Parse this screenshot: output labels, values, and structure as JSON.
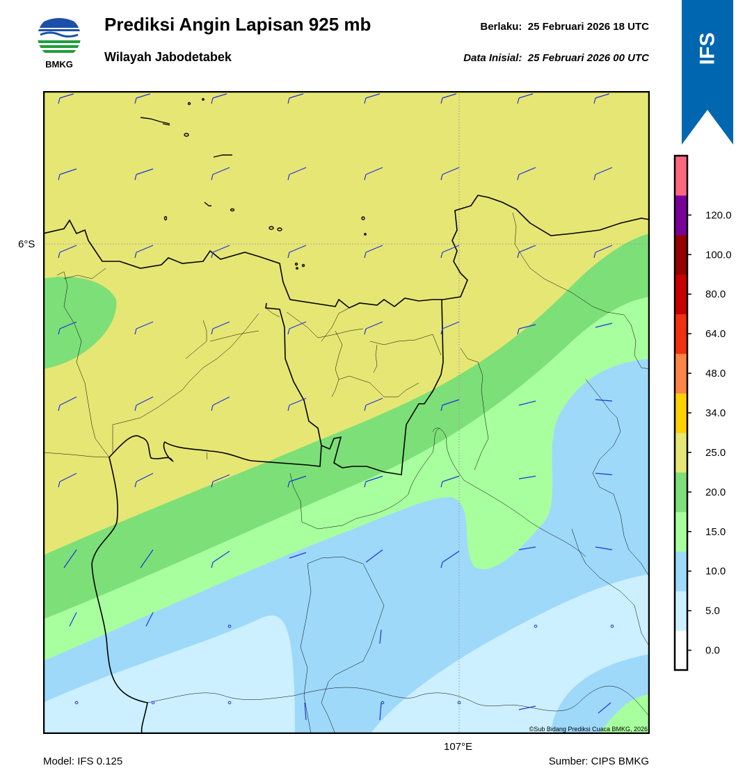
{
  "header": {
    "title": "Prediksi Angin Lapisan 925 mb",
    "subtitle": "Wilayah Jabodetabek",
    "valid_label": "Berlaku:",
    "valid_time": "25 Februari 2026 18 UTC",
    "init_label": "Data Inisial:",
    "init_time": "25 Februari 2026 00 UTC"
  },
  "logo": {
    "text": "BMKG"
  },
  "model_badge": "IFS",
  "axes": {
    "lat_label": "6°S",
    "lon_label": "107°E"
  },
  "footer": {
    "model": "Model: IFS 0.125",
    "source": "Sumber: CIPS BMKG",
    "credit": "©Sub Bidang Prediksi Cuaca BMKG, 2026"
  },
  "colorbar": {
    "ticks": [
      "0.0",
      "5.0",
      "10.0",
      "15.0",
      "20.0",
      "25.0",
      "34.0",
      "48.0",
      "64.0",
      "80.0",
      "100.0",
      "120.0"
    ],
    "colors": [
      "#ffffff",
      "#ccf0ff",
      "#9ed9fa",
      "#a8ff9e",
      "#7ddf78",
      "#e6e675",
      "#ffd000",
      "#ff8447",
      "#f03010",
      "#c80000",
      "#960000",
      "#7a0099",
      "#ff6680"
    ]
  },
  "colors": {
    "band_0_5": "#ccf0ff",
    "band_5_10": "#9ed9fa",
    "band_10_15": "#a8ff9e",
    "band_15_20": "#7ddf78",
    "band_20_25": "#e6e675",
    "barb": "#1a33dd",
    "ribbon": "#0066b0"
  }
}
